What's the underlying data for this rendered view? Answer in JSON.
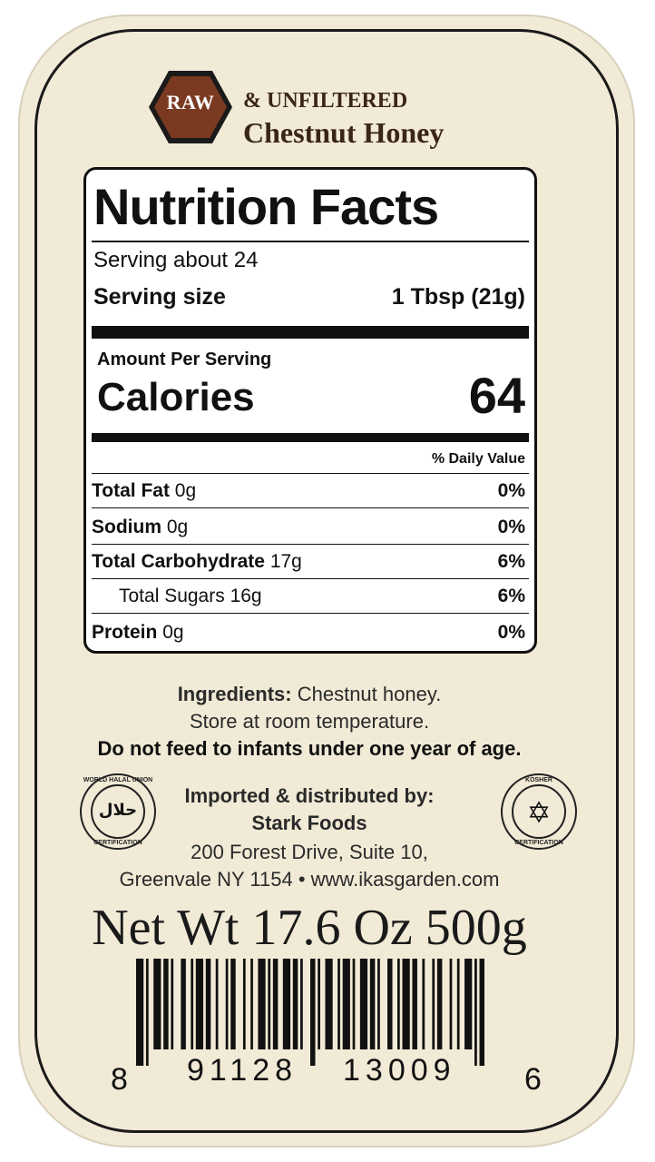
{
  "header": {
    "badge": "RAW",
    "line1": "& UNFILTERED",
    "product": "Chestnut Honey"
  },
  "nutrition": {
    "title": "Nutrition Facts",
    "servings": "Serving about 24",
    "serving_size_label": "Serving size",
    "serving_size_value": "1 Tbsp (21g)",
    "amount_per_serving": "Amount Per Serving",
    "calories_label": "Calories",
    "calories_value": "64",
    "dv_header": "% Daily Value",
    "rows": [
      {
        "label": "Total Fat",
        "amount": "0g",
        "dv": "0%"
      },
      {
        "label": "Sodium",
        "amount": "0g",
        "dv": "0%"
      },
      {
        "label": "Total Carbohydrate",
        "amount": "17g",
        "dv": "6%"
      },
      {
        "label": "Total Sugars",
        "amount": "16g",
        "dv": "6%"
      },
      {
        "label": "Protein",
        "amount": "0g",
        "dv": "0%"
      }
    ]
  },
  "info": {
    "ingredients_label": "Ingredients:",
    "ingredients_value": "Chestnut honey.",
    "storage": "Store at room temperature.",
    "warning": "Do not feed to infants under one year of age.",
    "distributor_label": "Imported & distributed by:",
    "company": "Stark Foods",
    "address1": "200 Forest Drive, Suite 10,",
    "address2": "Greenvale NY 1154 • www.ikasgarden.com"
  },
  "seals": {
    "halal_top": "WORLD HALAL UNION",
    "halal_center": "حلال",
    "halal_bottom": "CERTIFICATION",
    "kosher_top": "KOSHER",
    "kosher_center": "✡",
    "kosher_bottom": "CERTIFICATION"
  },
  "net_weight": "Net Wt 17.6 Oz 500g",
  "barcode": {
    "first": "8",
    "left": "91128",
    "right": "13009",
    "last": "6"
  },
  "colors": {
    "paper": "#f1ead6",
    "badge": "#7a3a22",
    "brown_text": "#3a2618"
  }
}
